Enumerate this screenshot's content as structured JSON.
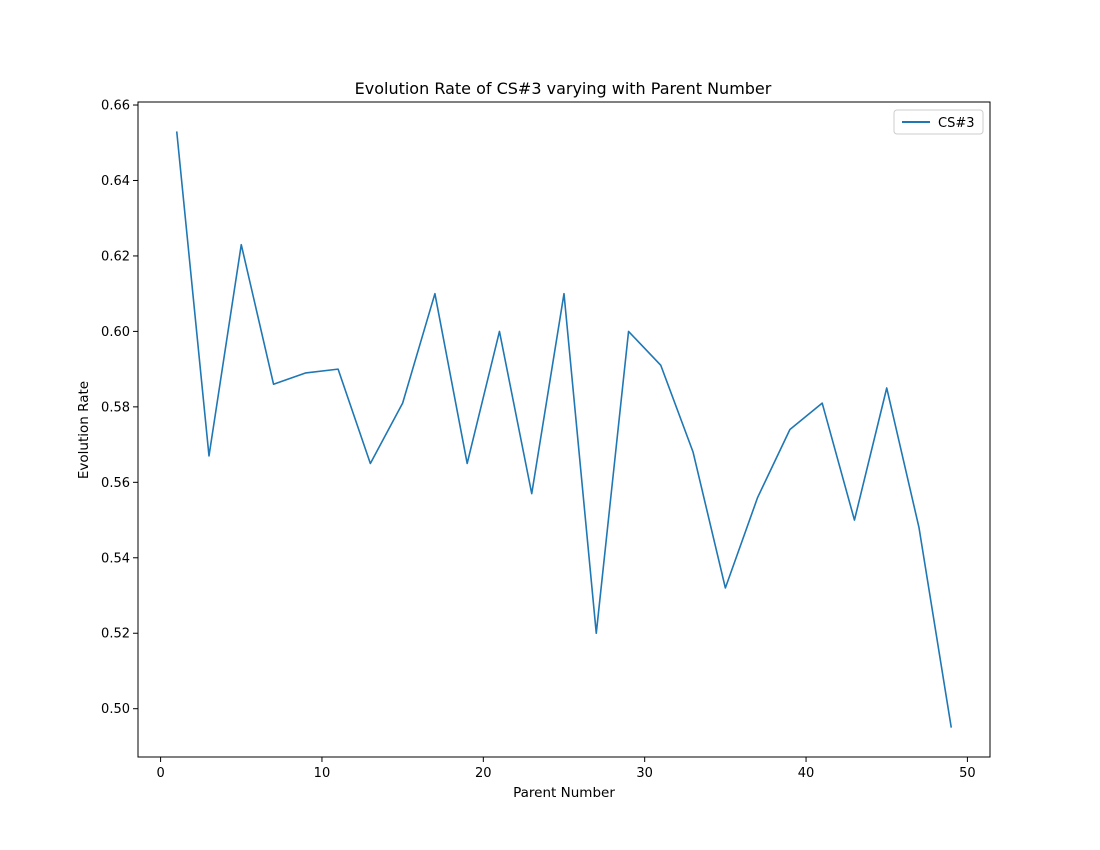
{
  "chart_data": {
    "type": "line",
    "title": "Evolution Rate of CS#3 varying with Parent Number",
    "xlabel": "Parent Number",
    "ylabel": "Evolution Rate",
    "xlim": [
      -1.4,
      51.4
    ],
    "ylim": [
      0.4872,
      0.6608
    ],
    "xticks": [
      0,
      10,
      20,
      30,
      40,
      50
    ],
    "yticks": [
      0.5,
      0.52,
      0.54,
      0.56,
      0.58,
      0.6,
      0.62,
      0.64,
      0.66
    ],
    "grid": false,
    "legend_position": "top-right",
    "series": [
      {
        "name": "CS#3",
        "color": "#1f77b4",
        "x": [
          1,
          3,
          5,
          7,
          9,
          11,
          13,
          15,
          17,
          19,
          21,
          23,
          25,
          27,
          29,
          31,
          33,
          35,
          37,
          39,
          41,
          43,
          45,
          47,
          49
        ],
        "y": [
          0.653,
          0.567,
          0.623,
          0.586,
          0.589,
          0.59,
          0.565,
          0.581,
          0.61,
          0.565,
          0.6,
          0.557,
          0.61,
          0.52,
          0.6,
          0.591,
          0.568,
          0.532,
          0.556,
          0.574,
          0.581,
          0.55,
          0.585,
          0.548,
          0.495
        ]
      }
    ]
  }
}
